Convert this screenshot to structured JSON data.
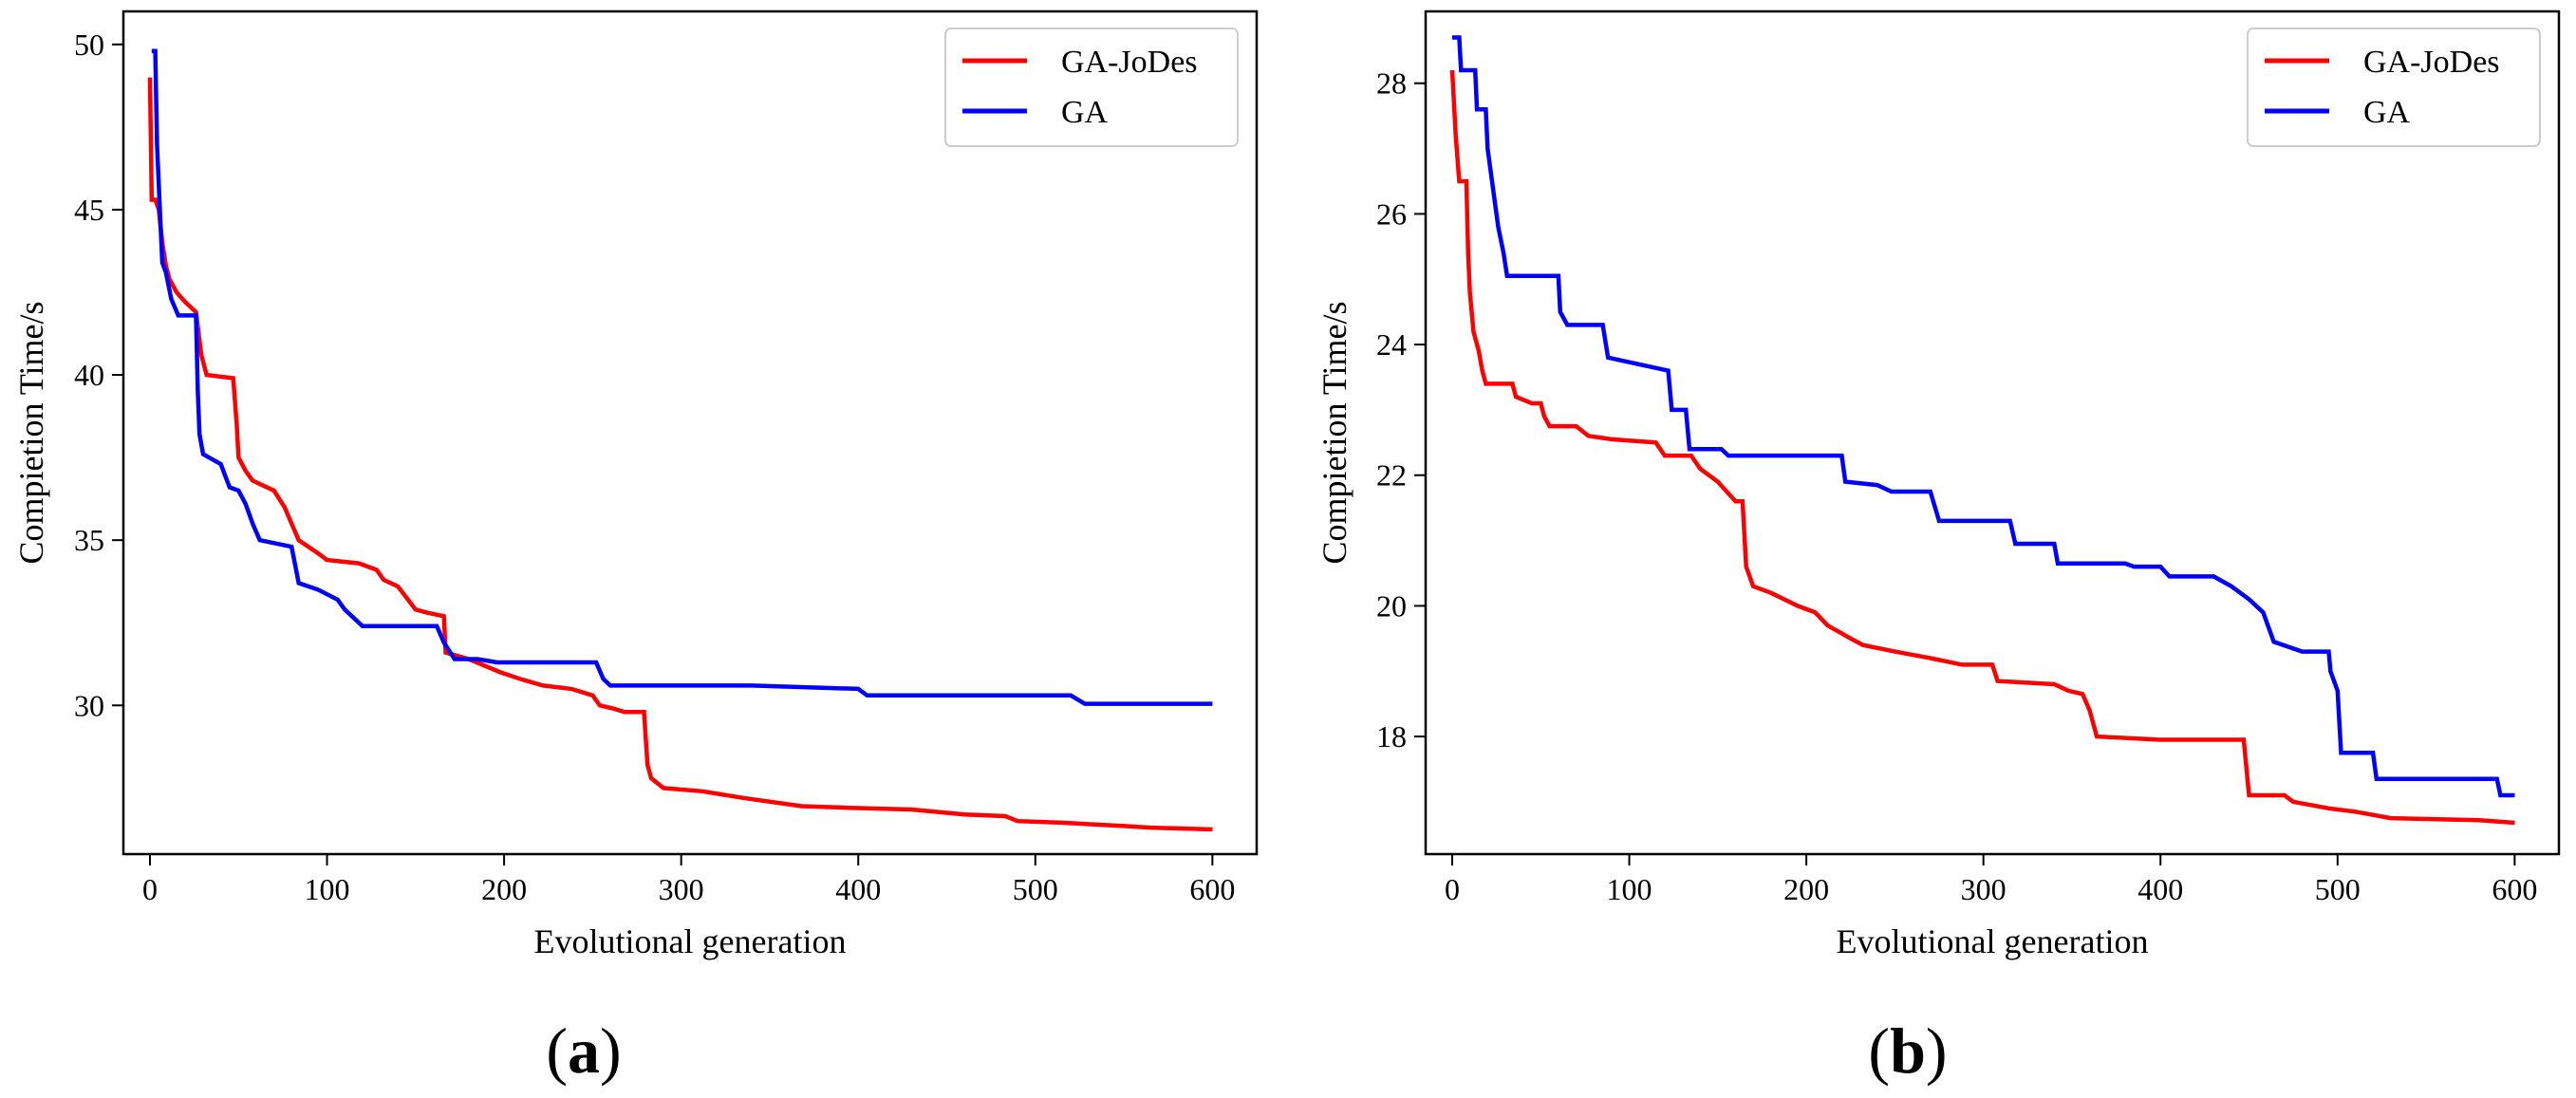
{
  "chart_data": [
    {
      "type": "line",
      "panel_label": {
        "open": "(",
        "letter": "a",
        "close": ")"
      },
      "xlabel": "Evolutional generation",
      "ylabel": "Compietion Time/s",
      "xlim": [
        -15,
        625
      ],
      "ylim": [
        25.5,
        51
      ],
      "xticks": [
        0,
        100,
        200,
        300,
        400,
        500,
        600
      ],
      "yticks": [
        30,
        35,
        40,
        45,
        50
      ],
      "legend_position": "top-right",
      "series": [
        {
          "name": "GA-JoDes",
          "color": "#ff0000",
          "points": [
            [
              0,
              49
            ],
            [
              1,
              45.3
            ],
            [
              3,
              45.3
            ],
            [
              5,
              45
            ],
            [
              7,
              44
            ],
            [
              9,
              43.3
            ],
            [
              11,
              42.9
            ],
            [
              15,
              42.5
            ],
            [
              20,
              42.2
            ],
            [
              26,
              41.9
            ],
            [
              29,
              40.6
            ],
            [
              32,
              40
            ],
            [
              47,
              39.9
            ],
            [
              49,
              38.5
            ],
            [
              50,
              37.5
            ],
            [
              54,
              37.1
            ],
            [
              58,
              36.8
            ],
            [
              70,
              36.5
            ],
            [
              76,
              36
            ],
            [
              80,
              35.5
            ],
            [
              84,
              35
            ],
            [
              95,
              34.6
            ],
            [
              100,
              34.4
            ],
            [
              118,
              34.3
            ],
            [
              128,
              34.1
            ],
            [
              132,
              33.8
            ],
            [
              140,
              33.6
            ],
            [
              150,
              32.9
            ],
            [
              157,
              32.8
            ],
            [
              166,
              32.7
            ],
            [
              167,
              31.6
            ],
            [
              180,
              31.4
            ],
            [
              189,
              31.2
            ],
            [
              198,
              31
            ],
            [
              209,
              30.8
            ],
            [
              222,
              30.6
            ],
            [
              238,
              30.5
            ],
            [
              250,
              30.3
            ],
            [
              254,
              30
            ],
            [
              262,
              29.9
            ],
            [
              268,
              29.8
            ],
            [
              279,
              29.8
            ],
            [
              281,
              28.2
            ],
            [
              283,
              27.8
            ],
            [
              290,
              27.5
            ],
            [
              312,
              27.4
            ],
            [
              335,
              27.2
            ],
            [
              368,
              26.95
            ],
            [
              395,
              26.9
            ],
            [
              430,
              26.85
            ],
            [
              460,
              26.7
            ],
            [
              483,
              26.65
            ],
            [
              490,
              26.5
            ],
            [
              515,
              26.45
            ],
            [
              550,
              26.35
            ],
            [
              565,
              26.3
            ],
            [
              600,
              26.25
            ]
          ]
        },
        {
          "name": "GA",
          "color": "#0000ff",
          "points": [
            [
              1,
              49.8
            ],
            [
              3,
              49.8
            ],
            [
              4,
              47
            ],
            [
              6,
              44.5
            ],
            [
              7,
              43.4
            ],
            [
              9,
              43.1
            ],
            [
              12,
              42.3
            ],
            [
              16,
              41.8
            ],
            [
              26,
              41.8
            ],
            [
              27,
              39.5
            ],
            [
              28,
              38.2
            ],
            [
              30,
              37.6
            ],
            [
              40,
              37.3
            ],
            [
              45,
              36.6
            ],
            [
              50,
              36.5
            ],
            [
              54,
              36.1
            ],
            [
              58,
              35.5
            ],
            [
              62,
              35
            ],
            [
              80,
              34.8
            ],
            [
              84,
              33.7
            ],
            [
              95,
              33.5
            ],
            [
              106,
              33.2
            ],
            [
              110,
              32.9
            ],
            [
              120,
              32.4
            ],
            [
              162,
              32.4
            ],
            [
              166,
              31.9
            ],
            [
              172,
              31.4
            ],
            [
              185,
              31.4
            ],
            [
              196,
              31.3
            ],
            [
              252,
              31.3
            ],
            [
              256,
              30.8
            ],
            [
              260,
              30.6
            ],
            [
              340,
              30.6
            ],
            [
              400,
              30.5
            ],
            [
              405,
              30.3
            ],
            [
              520,
              30.3
            ],
            [
              528,
              30.05
            ],
            [
              600,
              30.05
            ]
          ]
        }
      ]
    },
    {
      "type": "line",
      "panel_label": {
        "open": "(",
        "letter": "b",
        "close": ")"
      },
      "xlabel": "Evolutional generation",
      "ylabel": "Compietion Time/s",
      "xlim": [
        -15,
        625
      ],
      "ylim": [
        16.2,
        29.1
      ],
      "xticks": [
        0,
        100,
        200,
        300,
        400,
        500,
        600
      ],
      "yticks": [
        18,
        20,
        22,
        24,
        26,
        28
      ],
      "legend_position": "top-right",
      "series": [
        {
          "name": "GA-JoDes",
          "color": "#ff0000",
          "points": [
            [
              0,
              28.2
            ],
            [
              2,
              27.2
            ],
            [
              4,
              26.5
            ],
            [
              8,
              26.5
            ],
            [
              9,
              25.4
            ],
            [
              10,
              24.8
            ],
            [
              12,
              24.2
            ],
            [
              15,
              23.9
            ],
            [
              17,
              23.6
            ],
            [
              19,
              23.4
            ],
            [
              34,
              23.4
            ],
            [
              36,
              23.2
            ],
            [
              45,
              23.1
            ],
            [
              50,
              23.1
            ],
            [
              52,
              22.9
            ],
            [
              55,
              22.75
            ],
            [
              70,
              22.75
            ],
            [
              77,
              22.6
            ],
            [
              90,
              22.55
            ],
            [
              115,
              22.5
            ],
            [
              120,
              22.3
            ],
            [
              135,
              22.3
            ],
            [
              140,
              22.1
            ],
            [
              150,
              21.9
            ],
            [
              155,
              21.75
            ],
            [
              160,
              21.6
            ],
            [
              164,
              21.6
            ],
            [
              166,
              20.6
            ],
            [
              170,
              20.3
            ],
            [
              180,
              20.2
            ],
            [
              195,
              20
            ],
            [
              205,
              19.9
            ],
            [
              212,
              19.7
            ],
            [
              225,
              19.5
            ],
            [
              232,
              19.4
            ],
            [
              250,
              19.3
            ],
            [
              270,
              19.2
            ],
            [
              288,
              19.1
            ],
            [
              305,
              19.1
            ],
            [
              308,
              18.85
            ],
            [
              340,
              18.8
            ],
            [
              348,
              18.7
            ],
            [
              356,
              18.65
            ],
            [
              360,
              18.4
            ],
            [
              364,
              18
            ],
            [
              400,
              17.95
            ],
            [
              447,
              17.95
            ],
            [
              450,
              17.1
            ],
            [
              470,
              17.1
            ],
            [
              475,
              17
            ],
            [
              495,
              16.9
            ],
            [
              510,
              16.85
            ],
            [
              520,
              16.8
            ],
            [
              530,
              16.75
            ],
            [
              580,
              16.72
            ],
            [
              600,
              16.68
            ]
          ]
        },
        {
          "name": "GA",
          "color": "#0000ff",
          "points": [
            [
              0,
              28.7
            ],
            [
              4,
              28.7
            ],
            [
              5,
              28.2
            ],
            [
              13,
              28.2
            ],
            [
              14,
              27.6
            ],
            [
              19,
              27.6
            ],
            [
              20,
              27
            ],
            [
              23,
              26.4
            ],
            [
              26,
              25.8
            ],
            [
              29,
              25.4
            ],
            [
              31,
              25.05
            ],
            [
              60,
              25.05
            ],
            [
              61,
              24.5
            ],
            [
              65,
              24.3
            ],
            [
              85,
              24.3
            ],
            [
              88,
              23.8
            ],
            [
              105,
              23.7
            ],
            [
              122,
              23.6
            ],
            [
              124,
              23
            ],
            [
              132,
              23
            ],
            [
              134,
              22.4
            ],
            [
              152,
              22.4
            ],
            [
              156,
              22.3
            ],
            [
              220,
              22.3
            ],
            [
              222,
              21.9
            ],
            [
              240,
              21.85
            ],
            [
              248,
              21.75
            ],
            [
              270,
              21.75
            ],
            [
              275,
              21.3
            ],
            [
              315,
              21.3
            ],
            [
              318,
              20.95
            ],
            [
              340,
              20.95
            ],
            [
              342,
              20.65
            ],
            [
              380,
              20.65
            ],
            [
              385,
              20.6
            ],
            [
              400,
              20.6
            ],
            [
              405,
              20.45
            ],
            [
              430,
              20.45
            ],
            [
              440,
              20.3
            ],
            [
              450,
              20.1
            ],
            [
              458,
              19.9
            ],
            [
              462,
              19.6
            ],
            [
              464,
              19.45
            ],
            [
              480,
              19.3
            ],
            [
              495,
              19.3
            ],
            [
              496,
              19
            ],
            [
              500,
              18.7
            ],
            [
              502,
              17.75
            ],
            [
              520,
              17.75
            ],
            [
              522,
              17.35
            ],
            [
              590,
              17.35
            ],
            [
              592,
              17.1
            ],
            [
              600,
              17.1
            ]
          ]
        }
      ]
    }
  ]
}
